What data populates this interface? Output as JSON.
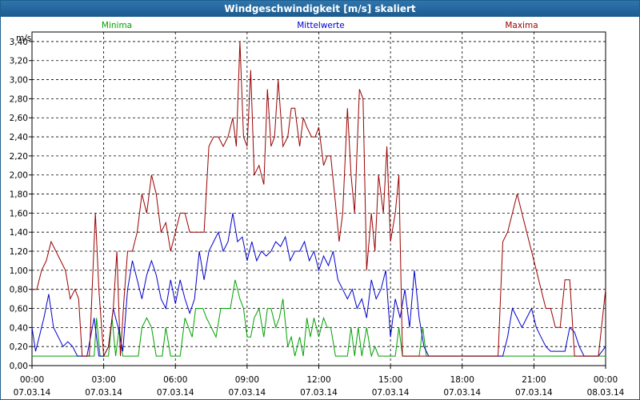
{
  "chart_data": {
    "type": "line",
    "title": "Windgeschwindigkeit [m/s] skaliert",
    "ylabel": "m/s",
    "xlabel": "",
    "ylim": [
      0,
      3.5
    ],
    "y_ticks": [
      "0,00",
      "0,20",
      "0,40",
      "0,60",
      "0,80",
      "1,00",
      "1,20",
      "1,40",
      "1,60",
      "1,80",
      "2,00",
      "2,20",
      "2,40",
      "2,60",
      "2,80",
      "3,00",
      "3,20",
      "3,40"
    ],
    "x_range_hours": [
      0,
      24
    ],
    "x_ticks": [
      {
        "hour": 0,
        "time": "00:00",
        "date": "07.03.14"
      },
      {
        "hour": 3,
        "time": "03:00",
        "date": "07.03.14"
      },
      {
        "hour": 6,
        "time": "06:00",
        "date": "07.03.14"
      },
      {
        "hour": 9,
        "time": "09:00",
        "date": "07.03.14"
      },
      {
        "hour": 12,
        "time": "12:00",
        "date": "07.03.14"
      },
      {
        "hour": 15,
        "time": "15:00",
        "date": "07.03.14"
      },
      {
        "hour": 18,
        "time": "18:00",
        "date": "07.03.14"
      },
      {
        "hour": 21,
        "time": "21:00",
        "date": "07.03.14"
      },
      {
        "hour": 24,
        "time": "00:00",
        "date": "08.03.14"
      }
    ],
    "grid": true,
    "legend_position": "top",
    "series": [
      {
        "name": "Minima",
        "color": "#00a000",
        "x": [
          0,
          2.6,
          2.7,
          2.85,
          3.0,
          3.2,
          3.35,
          3.5,
          3.65,
          3.8,
          4.0,
          4.2,
          4.45,
          4.6,
          4.8,
          5.0,
          5.2,
          5.45,
          5.6,
          5.8,
          6.0,
          6.2,
          6.4,
          6.55,
          6.7,
          6.85,
          7.0,
          7.15,
          7.3,
          7.5,
          7.7,
          7.9,
          8.1,
          8.3,
          8.5,
          8.7,
          8.85,
          9.0,
          9.15,
          9.3,
          9.5,
          9.7,
          9.85,
          10.0,
          10.2,
          10.35,
          10.5,
          10.7,
          10.85,
          11.0,
          11.2,
          11.35,
          11.5,
          11.65,
          11.8,
          12.0,
          12.2,
          12.35,
          12.5,
          12.7,
          12.85,
          13.0,
          13.2,
          13.35,
          13.5,
          13.65,
          13.8,
          14.0,
          14.2,
          14.35,
          14.5,
          14.65,
          14.8,
          15.0,
          15.2,
          15.35,
          15.5,
          15.65,
          15.8,
          16.0,
          16.2,
          16.35,
          16.5,
          16.65,
          16.8,
          24.0
        ],
        "values": [
          0.1,
          0.1,
          0.5,
          0.1,
          0.1,
          0.1,
          0.5,
          0.1,
          0.4,
          0.1,
          0.1,
          0.1,
          0.1,
          0.4,
          0.5,
          0.4,
          0.1,
          0.1,
          0.4,
          0.1,
          0.1,
          0.1,
          0.5,
          0.4,
          0.3,
          0.6,
          0.6,
          0.6,
          0.5,
          0.4,
          0.3,
          0.6,
          0.6,
          0.6,
          0.9,
          0.7,
          0.6,
          0.3,
          0.3,
          0.5,
          0.6,
          0.3,
          0.6,
          0.6,
          0.4,
          0.5,
          0.7,
          0.2,
          0.3,
          0.1,
          0.3,
          0.1,
          0.5,
          0.3,
          0.5,
          0.3,
          0.5,
          0.4,
          0.4,
          0.1,
          0.1,
          0.1,
          0.1,
          0.4,
          0.1,
          0.4,
          0.1,
          0.4,
          0.1,
          0.2,
          0.1,
          0.1,
          0.1,
          0.1,
          0.1,
          0.4,
          0.1,
          0.1,
          0.1,
          0.1,
          0.1,
          0.4,
          0.1,
          0.1,
          0.1,
          0.1
        ]
      },
      {
        "name": "Mittelwerte",
        "color": "#0000cc",
        "x": [
          0,
          0.15,
          0.3,
          0.5,
          0.7,
          0.9,
          1.1,
          1.3,
          1.5,
          1.7,
          1.9,
          2.1,
          2.3,
          2.6,
          2.8,
          3.0,
          3.2,
          3.4,
          3.6,
          3.8,
          4.0,
          4.2,
          4.4,
          4.6,
          4.8,
          5.0,
          5.2,
          5.4,
          5.6,
          5.8,
          6.0,
          6.2,
          6.4,
          6.6,
          6.8,
          7.0,
          7.2,
          7.4,
          7.6,
          7.8,
          8.0,
          8.2,
          8.4,
          8.6,
          8.8,
          9.0,
          9.2,
          9.4,
          9.6,
          9.8,
          10.0,
          10.2,
          10.4,
          10.6,
          10.8,
          11.0,
          11.2,
          11.4,
          11.6,
          11.8,
          12.0,
          12.2,
          12.4,
          12.6,
          12.8,
          13.0,
          13.2,
          13.4,
          13.6,
          13.8,
          14.0,
          14.2,
          14.4,
          14.6,
          14.8,
          15.0,
          15.2,
          15.4,
          15.6,
          15.8,
          16.0,
          16.2,
          16.4,
          16.6,
          16.8,
          17.0,
          19.5,
          19.7,
          19.9,
          20.1,
          20.3,
          20.5,
          20.7,
          20.9,
          21.1,
          21.3,
          21.5,
          21.7,
          21.9,
          22.1,
          22.3,
          22.5,
          22.7,
          22.9,
          23.1,
          23.3,
          23.5,
          23.7,
          24.0
        ],
        "values": [
          0.4,
          0.15,
          0.3,
          0.5,
          0.75,
          0.4,
          0.3,
          0.2,
          0.25,
          0.2,
          0.1,
          0.1,
          0.1,
          0.5,
          0.1,
          0.1,
          0.2,
          0.6,
          0.4,
          0.15,
          0.8,
          1.1,
          0.9,
          0.7,
          0.95,
          1.1,
          0.95,
          0.7,
          0.6,
          0.9,
          0.65,
          0.9,
          0.7,
          0.55,
          0.7,
          1.2,
          0.9,
          1.2,
          1.3,
          1.4,
          1.2,
          1.3,
          1.6,
          1.3,
          1.35,
          1.1,
          1.3,
          1.1,
          1.2,
          1.15,
          1.2,
          1.3,
          1.25,
          1.35,
          1.1,
          1.2,
          1.2,
          1.3,
          1.1,
          1.2,
          1.0,
          1.15,
          1.05,
          1.2,
          0.9,
          0.8,
          0.7,
          0.8,
          0.6,
          0.7,
          0.5,
          0.9,
          0.7,
          0.8,
          1.0,
          0.3,
          0.7,
          0.5,
          0.8,
          0.4,
          1.0,
          0.5,
          0.2,
          0.1,
          0.1,
          0.1,
          0.1,
          0.1,
          0.3,
          0.6,
          0.5,
          0.4,
          0.5,
          0.6,
          0.4,
          0.3,
          0.2,
          0.15,
          0.15,
          0.15,
          0.15,
          0.4,
          0.35,
          0.2,
          0.1,
          0.1,
          0.1,
          0.1,
          0.2
        ]
      },
      {
        "name": "Maxima",
        "color": "#990000",
        "x": [
          0,
          0.2,
          0.4,
          0.6,
          0.8,
          1.0,
          1.2,
          1.4,
          1.6,
          1.8,
          1.95,
          2.1,
          2.4,
          2.65,
          2.8,
          3.0,
          3.2,
          3.4,
          3.55,
          3.7,
          3.85,
          4.0,
          4.2,
          4.4,
          4.6,
          4.8,
          5.0,
          5.2,
          5.4,
          5.6,
          5.8,
          6.0,
          6.2,
          6.4,
          6.6,
          6.8,
          7.0,
          7.2,
          7.4,
          7.6,
          7.8,
          8.0,
          8.2,
          8.4,
          8.55,
          8.7,
          8.85,
          9.0,
          9.15,
          9.3,
          9.5,
          9.7,
          9.85,
          10.0,
          10.15,
          10.3,
          10.5,
          10.7,
          10.85,
          11.0,
          11.2,
          11.35,
          11.5,
          11.7,
          11.85,
          12.0,
          12.2,
          12.35,
          12.5,
          12.7,
          12.85,
          13.0,
          13.2,
          13.35,
          13.5,
          13.7,
          13.85,
          14.0,
          14.2,
          14.35,
          14.5,
          14.7,
          14.85,
          15.0,
          15.2,
          15.35,
          15.5,
          15.7,
          15.85,
          16.0,
          16.2,
          16.4,
          16.6,
          16.8,
          17.0,
          19.5,
          19.7,
          19.9,
          20.1,
          20.3,
          20.5,
          20.7,
          20.9,
          21.1,
          21.3,
          21.5,
          21.7,
          21.9,
          22.1,
          22.3,
          22.5,
          22.7,
          22.9,
          23.1,
          23.3,
          23.5,
          23.7,
          24.0
        ],
        "values": [
          0.8,
          0.8,
          1.0,
          1.1,
          1.3,
          1.2,
          1.1,
          1.0,
          0.7,
          0.8,
          0.7,
          0.1,
          0.1,
          1.6,
          0.8,
          0.1,
          0.2,
          0.6,
          1.2,
          0.1,
          0.7,
          1.2,
          1.2,
          1.4,
          1.8,
          1.6,
          2.0,
          1.8,
          1.4,
          1.5,
          1.2,
          1.4,
          1.6,
          1.6,
          1.4,
          1.4,
          1.4,
          1.4,
          2.3,
          2.4,
          2.4,
          2.3,
          2.4,
          2.6,
          2.3,
          3.4,
          2.4,
          2.3,
          3.1,
          2.0,
          2.1,
          1.9,
          2.9,
          2.3,
          2.4,
          3.0,
          2.3,
          2.4,
          2.7,
          2.7,
          2.3,
          2.6,
          2.5,
          2.4,
          2.4,
          2.5,
          2.1,
          2.2,
          2.2,
          1.7,
          1.3,
          1.6,
          2.7,
          2.0,
          1.6,
          2.9,
          2.8,
          1.0,
          1.6,
          1.2,
          2.0,
          1.6,
          2.3,
          1.3,
          1.6,
          2.0,
          0.1,
          0.1,
          0.1,
          0.1,
          0.1,
          0.1,
          0.1,
          0.1,
          0.1,
          0.1,
          1.3,
          1.4,
          1.6,
          1.8,
          1.6,
          1.4,
          1.2,
          1.0,
          0.8,
          0.6,
          0.6,
          0.4,
          0.4,
          0.9,
          0.9,
          0.1,
          0.1,
          0.1,
          0.1,
          0.1,
          0.1,
          0.8
        ]
      }
    ]
  }
}
